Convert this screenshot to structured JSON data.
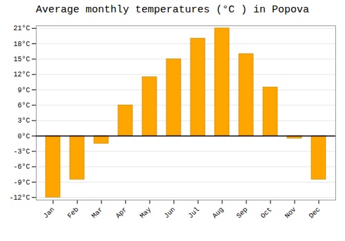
{
  "chart_data": {
    "type": "bar",
    "title": "Average monthly temperatures (°C ) in Popova",
    "categories": [
      "Jan",
      "Feb",
      "Mar",
      "Apr",
      "May",
      "Jun",
      "Jul",
      "Aug",
      "Sep",
      "Oct",
      "Nov",
      "Dec"
    ],
    "values": [
      -12,
      -8.5,
      -1.5,
      6,
      11.5,
      15,
      19,
      21,
      16,
      9.5,
      -0.5,
      -8.5
    ],
    "color": "#FFA500",
    "ylim": [
      -12.5,
      21.5
    ],
    "yticks": [
      {
        "value": -12,
        "label": "-12°C"
      },
      {
        "value": -9,
        "label": "-9°C"
      },
      {
        "value": -6,
        "label": "-6°C"
      },
      {
        "value": -3,
        "label": "-3°C"
      },
      {
        "value": 0,
        "label": "0°C"
      },
      {
        "value": 3,
        "label": "3°C"
      },
      {
        "value": 6,
        "label": "6°C"
      },
      {
        "value": 9,
        "label": "9°C"
      },
      {
        "value": 12,
        "label": "12°C"
      },
      {
        "value": 15,
        "label": "15°C"
      },
      {
        "value": 18,
        "label": "18°C"
      },
      {
        "value": 21,
        "label": "21°C"
      }
    ],
    "grid": true
  }
}
